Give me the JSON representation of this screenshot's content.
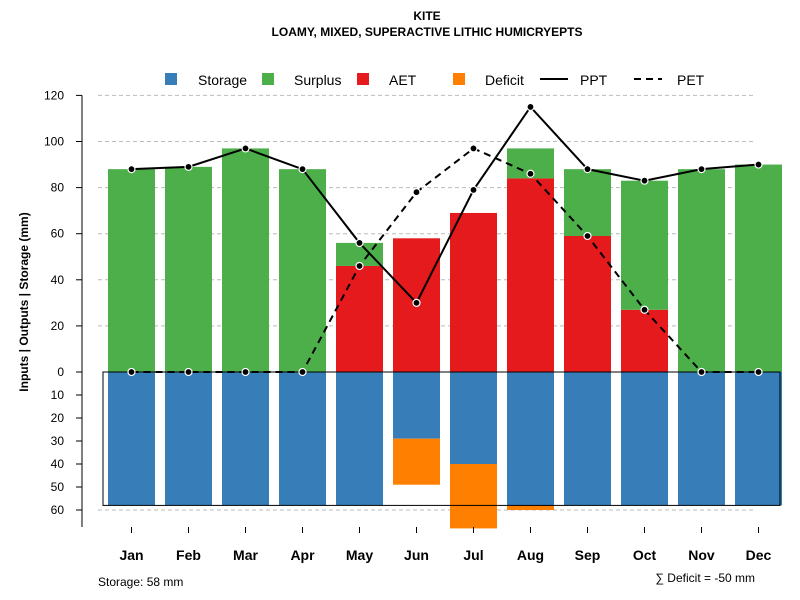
{
  "chart_data": {
    "type": "bar",
    "title": "KITE",
    "subtitle": "LOAMY, MIXED, SUPERACTIVE LITHIC HUMICRYEPTS",
    "ylabel": "Inputs | Outputs | Storage     (mm)",
    "categories": [
      "Jan",
      "Feb",
      "Mar",
      "Apr",
      "May",
      "Jun",
      "Jul",
      "Aug",
      "Sep",
      "Oct",
      "Nov",
      "Dec"
    ],
    "legend": [
      "Storage",
      "Surplus",
      "AET",
      "Deficit",
      "PPT",
      "PET"
    ],
    "colors": {
      "storage": "#377eb8",
      "surplus": "#4daf4a",
      "aet": "#e41a1c",
      "deficit": "#ff7f00",
      "line": "#000000",
      "grid": "#bbbbbb"
    },
    "upper_ticks": [
      "0",
      "20",
      "40",
      "60",
      "80",
      "100",
      "120"
    ],
    "lower_ticks": [
      "10",
      "20",
      "30",
      "40",
      "50",
      "60"
    ],
    "ylim_upper": [
      0,
      120
    ],
    "ylim_lower": [
      0,
      60
    ],
    "series": [
      {
        "name": "AET",
        "values": [
          0,
          0,
          0,
          0,
          46,
          58,
          69,
          84,
          59,
          27,
          0,
          0
        ]
      },
      {
        "name": "Surplus",
        "values": [
          88,
          89,
          97,
          88,
          10,
          0,
          0,
          13,
          29,
          56,
          88,
          90
        ]
      },
      {
        "name": "Storage",
        "values": [
          58,
          58,
          58,
          58,
          58,
          29,
          40,
          58,
          58,
          58,
          58,
          58
        ]
      },
      {
        "name": "Deficit",
        "values": [
          0,
          0,
          0,
          0,
          0,
          20,
          28,
          2,
          0,
          0,
          0,
          0
        ]
      },
      {
        "name": "PPT",
        "values": [
          88,
          89,
          97,
          88,
          56,
          30,
          79,
          115,
          88,
          83,
          88,
          90
        ]
      },
      {
        "name": "PET",
        "values": [
          0,
          0,
          0,
          0,
          46,
          78,
          97,
          86,
          59,
          27,
          0,
          0
        ]
      }
    ],
    "storage_capacity": 58,
    "storage_note": "Storage: 58 mm",
    "deficit_note": "∑ Deficit = -50 mm"
  }
}
